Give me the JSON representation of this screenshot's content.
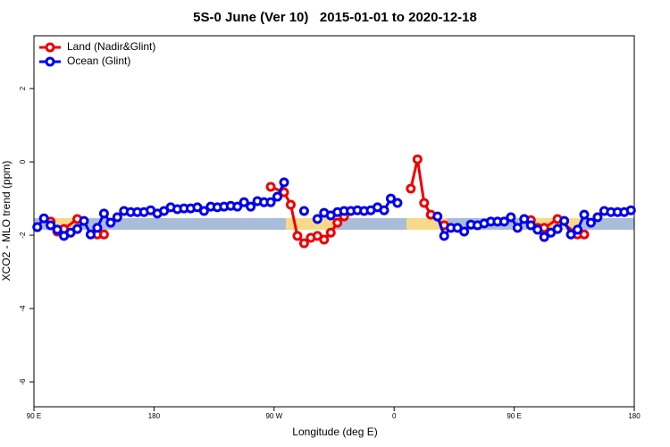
{
  "chart_data": {
    "type": "line",
    "title": "5S-0 June (Ver 10)   2015-01-01 to 2020-12-18",
    "x_label": "Longitude (deg E)",
    "y_label": "XCO2 - MLO trend (ppm)",
    "xlim": [
      90,
      540
    ],
    "xticks": [
      {
        "value": 90,
        "label": "90 E"
      },
      {
        "value": 180,
        "label": "180"
      },
      {
        "value": 270,
        "label": "90 W"
      },
      {
        "value": 360,
        "label": "0"
      },
      {
        "value": 450,
        "label": "90 E"
      },
      {
        "value": 540,
        "label": "180"
      }
    ],
    "ylim": [
      -6.68,
      3.44
    ],
    "yticks": [
      2,
      0,
      -2,
      -4,
      -6
    ],
    "legend": "top-left",
    "series": [
      {
        "name": "Land (Nadir&Glint)",
        "color": "#ee0000",
        "x": [
          102.5,
          107.5,
          112.5,
          122.5,
          130,
          137.5,
          142.5,
          200,
          267.5,
          277.5,
          282.5,
          287.5,
          292.5,
          297.5,
          302.5,
          307.5,
          312.5,
          317.5,
          322.5,
          350,
          372.5,
          377.5,
          382.5,
          387.5,
          397.5,
          430,
          462.5,
          467.5,
          472.5,
          482.5,
          497.5,
          502.5
        ],
        "values": [
          -1.63,
          -1.9,
          -1.83,
          -1.56,
          null,
          -1.98,
          -1.98,
          null,
          -0.68,
          -0.83,
          -1.17,
          -2.02,
          -2.22,
          -2.07,
          -2.02,
          -2.12,
          -1.93,
          -1.66,
          -1.49,
          null,
          -0.73,
          0.07,
          -1.12,
          -1.44,
          -1.73,
          null,
          -1.59,
          -1.8,
          -1.8,
          -1.56,
          -1.98,
          -1.98
        ]
      },
      {
        "name": "Ocean (Glint)",
        "color": "#0000ee",
        "x": [
          92.5,
          97.5,
          102.5,
          107.5,
          112.5,
          117.5,
          122.5,
          127.5,
          132.5,
          137.5,
          142.5,
          147.5,
          152.5,
          157.5,
          162.5,
          167.5,
          172.5,
          177.5,
          182.5,
          187.5,
          192.5,
          197.5,
          202.5,
          207.5,
          212.5,
          217.5,
          222.5,
          227.5,
          232.5,
          237.5,
          242.5,
          247.5,
          252.5,
          257.5,
          262.5,
          267.5,
          272.5,
          277.5,
          285,
          292.5,
          297.5,
          302.5,
          307.5,
          312.5,
          317.5,
          322.5,
          327.5,
          332.5,
          337.5,
          342.5,
          347.5,
          352.5,
          357.5,
          362.5,
          375,
          392.5,
          397.5,
          402.5,
          407.5,
          412.5,
          417.5,
          422.5,
          427.5,
          432.5,
          437.5,
          442.5,
          447.5,
          452.5,
          457.5,
          462.5,
          467.5,
          472.5,
          477.5,
          482.5,
          487.5,
          492.5,
          497.5,
          502.5,
          507.5,
          512.5,
          517.5,
          522.5,
          527.5,
          532.5,
          537.5
        ],
        "values": [
          -1.78,
          -1.54,
          -1.73,
          -1.85,
          -2.02,
          -1.93,
          -1.83,
          -1.61,
          -1.98,
          -1.8,
          -1.41,
          -1.66,
          -1.51,
          -1.34,
          -1.37,
          -1.37,
          -1.37,
          -1.32,
          -1.41,
          -1.34,
          -1.24,
          -1.29,
          -1.27,
          -1.27,
          -1.24,
          -1.34,
          -1.22,
          -1.24,
          -1.22,
          -1.2,
          -1.22,
          -1.1,
          -1.22,
          -1.07,
          -1.1,
          -1.1,
          -0.95,
          -0.56,
          null,
          -1.34,
          null,
          -1.56,
          -1.39,
          -1.46,
          -1.37,
          -1.34,
          -1.34,
          -1.32,
          -1.34,
          -1.32,
          -1.24,
          -1.32,
          -1.0,
          -1.12,
          null,
          -1.49,
          -2.02,
          -1.8,
          -1.8,
          -1.9,
          -1.71,
          -1.73,
          -1.68,
          -1.63,
          -1.63,
          -1.63,
          -1.51,
          -1.8,
          -1.56,
          -1.73,
          -1.85,
          -2.05,
          -1.93,
          -1.83,
          -1.61,
          -1.98,
          -1.85,
          -1.44,
          -1.66,
          -1.51,
          -1.34,
          -1.37,
          -1.37,
          -1.37,
          -1.32
        ]
      }
    ]
  }
}
